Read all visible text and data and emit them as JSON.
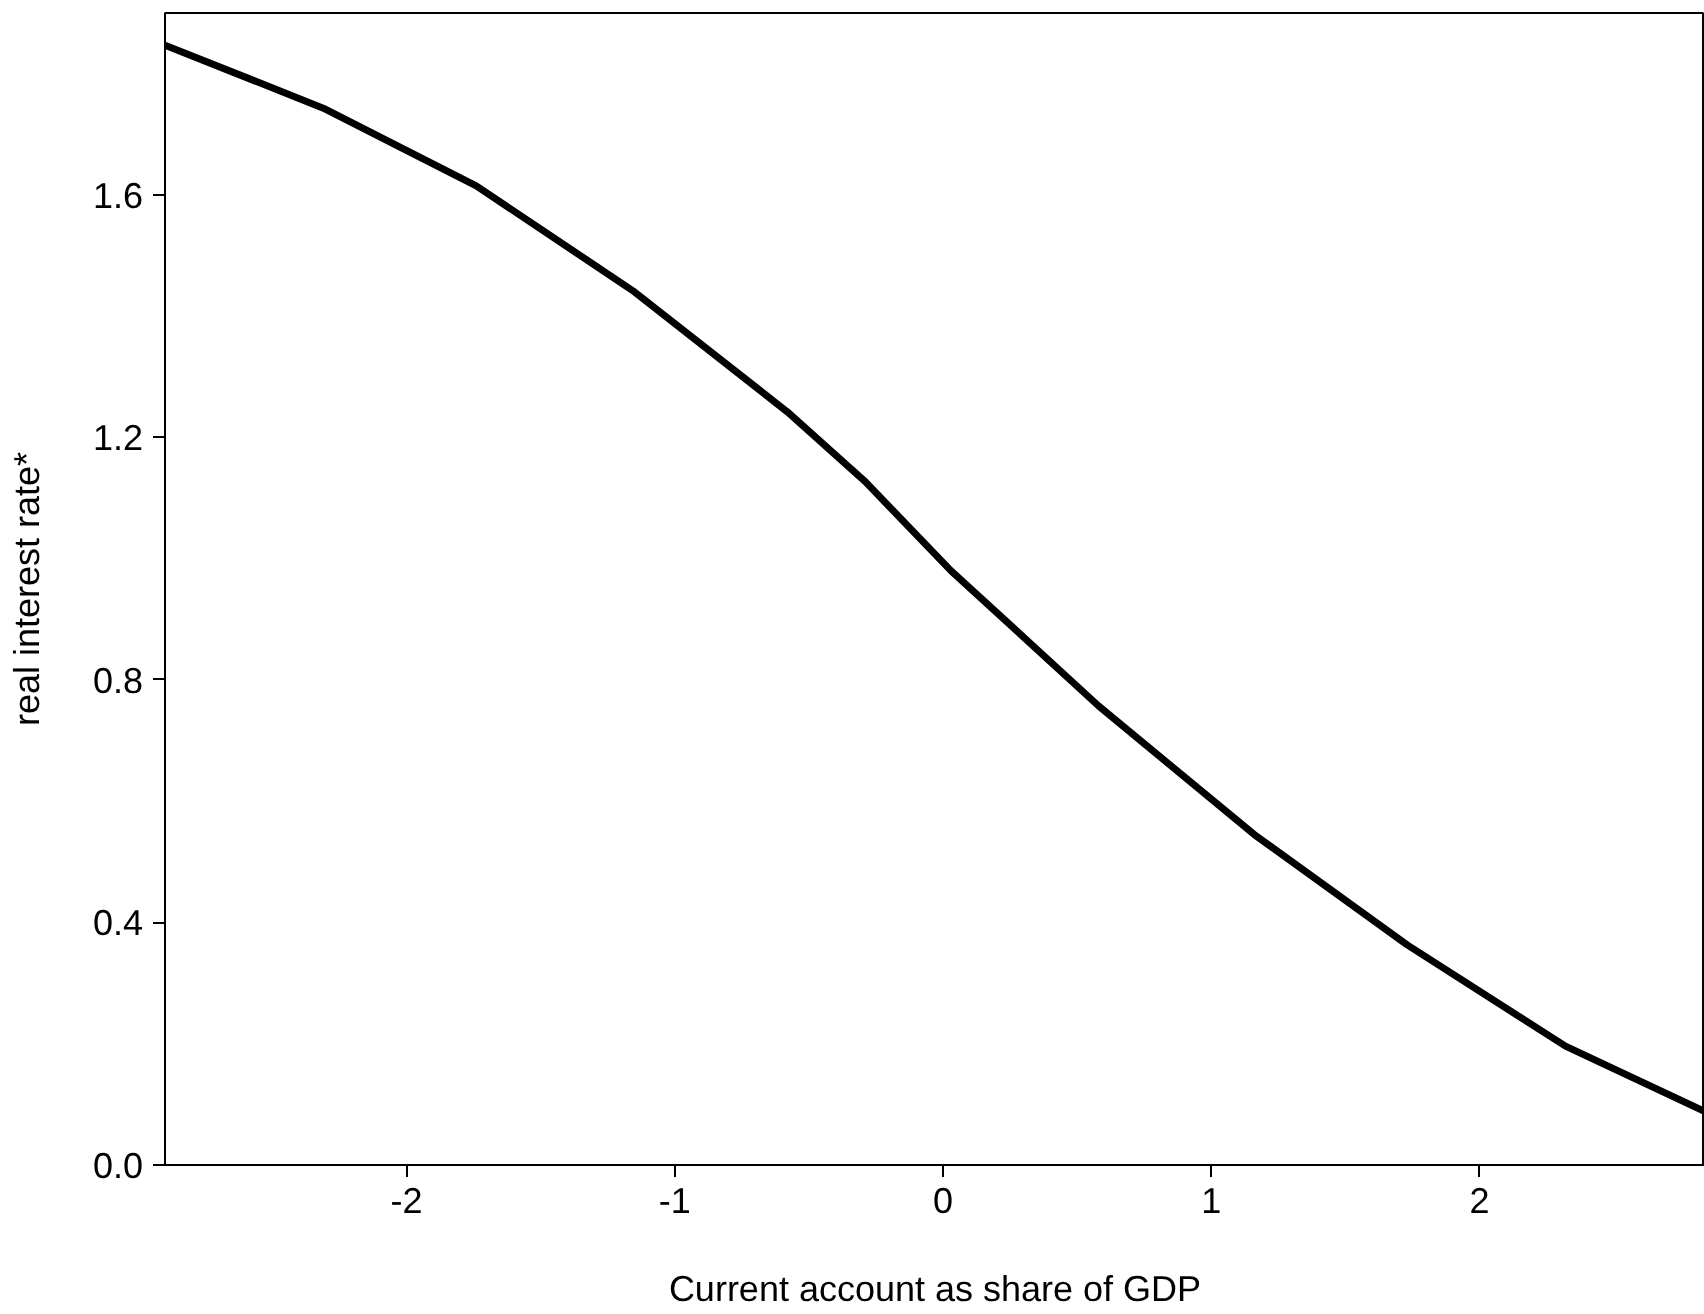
{
  "chart_data": {
    "type": "line",
    "xlabel": "Current account as share of GDP",
    "ylabel": "real interest rate*",
    "x": [
      -2.9,
      -2.31,
      -1.74,
      -1.15,
      -0.58,
      -0.29,
      0.03,
      0.58,
      1.16,
      1.73,
      2.32,
      2.84
    ],
    "series": [
      {
        "color": "#000000",
        "values": [
          1.847,
          1.743,
          1.615,
          1.44,
          1.242,
          1.127,
          0.98,
          0.757,
          0.545,
          0.363,
          0.196,
          0.088
        ]
      }
    ],
    "xlim": [
      -2.9,
      2.84
    ],
    "ylim": [
      0,
      1.9
    ],
    "xticks": [
      -2,
      -1,
      0,
      1,
      2
    ],
    "yticks": [
      {
        "value": 0,
        "label": "0.0"
      },
      {
        "value": 0.4,
        "label": "0.4"
      },
      {
        "value": 0.8,
        "label": "0.8"
      },
      {
        "value": 1.2,
        "label": "1.2"
      },
      {
        "value": 1.6,
        "label": "1.6"
      }
    ],
    "grid": false,
    "marker": "none",
    "line_style": "solid"
  }
}
